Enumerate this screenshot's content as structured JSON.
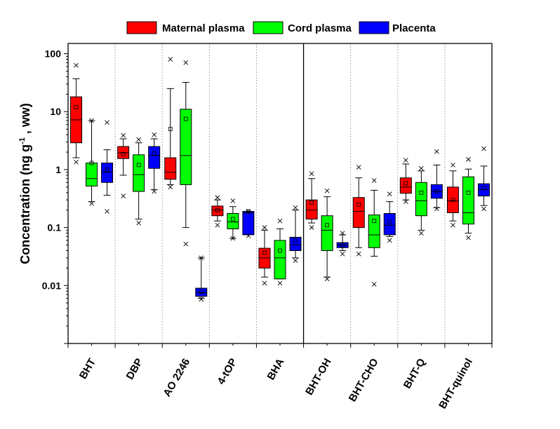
{
  "chart_data": {
    "type": "box",
    "ylabel": "Concentration (ng g",
    "ylabel_sup": "-1",
    "ylabel_tail": " , ww)",
    "yscale": "log",
    "ylim": [
      0.001,
      150
    ],
    "yticks": [
      {
        "value": 0.01,
        "label": "0.01"
      },
      {
        "value": 0.1,
        "label": "0.1"
      },
      {
        "value": 1,
        "label": "1"
      },
      {
        "value": 10,
        "label": "10"
      },
      {
        "value": 100,
        "label": "100"
      }
    ],
    "categories": [
      "BHT",
      "DBP",
      "AO 2246",
      "4-tOP",
      "BHA",
      "BHT-OH",
      "BHT-CHO",
      "BHT-Q",
      "BHT-quinol"
    ],
    "separator_after_category": 4,
    "legend": [
      {
        "name": "Maternal plasma",
        "color": "#ff0000"
      },
      {
        "name": "Cord plasma",
        "color": "#00ff00"
      },
      {
        "name": "Placenta",
        "color": "#0000ff"
      }
    ],
    "series": [
      {
        "name": "Maternal plasma",
        "color": "#ff0000",
        "boxes": [
          {
            "whisker_low": 1.6,
            "q1": 2.9,
            "median": 7.2,
            "q3": 18,
            "whisker_high": 37,
            "mean": 12,
            "outliers": [
              1.35,
              63
            ]
          },
          {
            "whisker_low": 0.8,
            "q1": 1.55,
            "median": 1.95,
            "q3": 2.5,
            "whisker_high": 3.4,
            "mean": 1.85,
            "outliers": [
              0.35,
              3.9
            ]
          },
          {
            "whisker_low": 0.55,
            "q1": 0.68,
            "median": 0.9,
            "q3": 1.6,
            "whisker_high": 25,
            "mean": 5,
            "outliers": [
              0.5,
              80
            ]
          },
          {
            "whisker_low": 0.13,
            "q1": 0.16,
            "median": 0.2,
            "q3": 0.235,
            "whisker_high": 0.3,
            "mean": 0.2,
            "outliers": [
              0.11,
              0.33
            ]
          },
          {
            "whisker_low": 0.014,
            "q1": 0.02,
            "median": 0.03,
            "q3": 0.044,
            "whisker_high": 0.09,
            "mean": 0.037,
            "outliers": [
              0.011,
              0.1
            ]
          },
          {
            "whisker_low": 0.12,
            "q1": 0.14,
            "median": 0.2,
            "q3": 0.3,
            "whisker_high": 0.7,
            "mean": 0.27,
            "outliers": [
              0.1,
              0.85
            ]
          },
          {
            "whisker_low": 0.045,
            "q1": 0.1,
            "median": 0.19,
            "q3": 0.33,
            "whisker_high": 0.72,
            "mean": 0.25,
            "outliers": [
              0.035,
              1.1
            ]
          },
          {
            "whisker_low": 0.3,
            "q1": 0.39,
            "median": 0.5,
            "q3": 0.72,
            "whisker_high": 1.25,
            "mean": 0.58,
            "outliers": [
              0.28,
              1.45
            ]
          },
          {
            "whisker_low": 0.13,
            "q1": 0.18,
            "median": 0.29,
            "q3": 0.5,
            "whisker_high": 0.95,
            "mean": 0.3,
            "outliers": [
              0.11,
              1.2
            ]
          }
        ]
      },
      {
        "name": "Cord plasma",
        "color": "#00ff00",
        "boxes": [
          {
            "whisker_low": 0.28,
            "q1": 0.52,
            "median": 0.7,
            "q3": 1.3,
            "whisker_high": 7,
            "mean": 1.3,
            "outliers": [
              0.26,
              7
            ]
          },
          {
            "whisker_low": 0.14,
            "q1": 0.42,
            "median": 0.82,
            "q3": 1.8,
            "whisker_high": 2.9,
            "mean": 1.2,
            "outliers": [
              0.12,
              3.3
            ]
          },
          {
            "whisker_low": 0.1,
            "q1": 0.55,
            "median": 1.75,
            "q3": 11,
            "whisker_high": 32,
            "mean": 7.5,
            "outliers": [
              0.052,
              70
            ]
          },
          {
            "whisker_low": 0.065,
            "q1": 0.095,
            "median": 0.125,
            "q3": 0.175,
            "whisker_high": 0.23,
            "mean": 0.14,
            "outliers": [
              0.065,
              0.29
            ]
          },
          {
            "whisker_low": 0.013,
            "q1": 0.013,
            "median": 0.03,
            "q3": 0.06,
            "whisker_high": 0.095,
            "mean": 0.04,
            "outliers": [
              0.011,
              0.13
            ]
          },
          {
            "whisker_low": 0.014,
            "q1": 0.04,
            "median": 0.09,
            "q3": 0.16,
            "whisker_high": 0.34,
            "mean": 0.11,
            "outliers": [
              0.013,
              0.43
            ]
          },
          {
            "whisker_low": 0.032,
            "q1": 0.045,
            "median": 0.075,
            "q3": 0.165,
            "whisker_high": 0.44,
            "mean": 0.13,
            "outliers": [
              0.0105,
              0.65
            ]
          },
          {
            "whisker_low": 0.09,
            "q1": 0.16,
            "median": 0.29,
            "q3": 0.6,
            "whisker_high": 0.95,
            "mean": 0.4,
            "outliers": [
              0.08,
              1.05
            ]
          },
          {
            "whisker_low": 0.08,
            "q1": 0.115,
            "median": 0.18,
            "q3": 0.75,
            "whisker_high": 1.02,
            "mean": 0.4,
            "outliers": [
              0.067,
              1.5
            ]
          }
        ]
      },
      {
        "name": "Placenta",
        "color": "#0000ff",
        "boxes": [
          {
            "whisker_low": 0.36,
            "q1": 0.6,
            "median": 0.9,
            "q3": 1.3,
            "whisker_high": 2.2,
            "mean": 1.0,
            "outliers": [
              0.19,
              6.5
            ]
          },
          {
            "whisker_low": 0.45,
            "q1": 1.05,
            "median": 1.75,
            "q3": 2.5,
            "whisker_high": 3.4,
            "mean": 1.9,
            "outliers": [
              0.42,
              4.0
            ]
          },
          {
            "whisker_low": 0.006,
            "q1": 0.0065,
            "median": 0.0075,
            "q3": 0.009,
            "whisker_high": 0.03,
            "mean": 0.0078,
            "outliers": [
              0.0058,
              0.03
            ]
          },
          {
            "whisker_low": 0.075,
            "q1": 0.075,
            "median": 0.18,
            "q3": 0.19,
            "whisker_high": 0.19,
            "mean": 0.19,
            "outliers": [
              0.072,
              0.19
            ]
          },
          {
            "whisker_low": 0.03,
            "q1": 0.04,
            "median": 0.05,
            "q3": 0.068,
            "whisker_high": 0.2,
            "mean": 0.06,
            "outliers": [
              0.027,
              0.22
            ]
          },
          {
            "whisker_low": 0.04,
            "q1": 0.045,
            "median": 0.05,
            "q3": 0.055,
            "whisker_high": 0.075,
            "mean": 0.05,
            "outliers": [
              0.035,
              0.08
            ]
          },
          {
            "whisker_low": 0.07,
            "q1": 0.075,
            "median": 0.11,
            "q3": 0.175,
            "whisker_high": 0.28,
            "mean": 0.125,
            "outliers": [
              0.06,
              0.38
            ]
          },
          {
            "whisker_low": 0.22,
            "q1": 0.32,
            "median": 0.42,
            "q3": 0.55,
            "whisker_high": 1.2,
            "mean": 0.42,
            "outliers": [
              0.21,
              2.05
            ]
          },
          {
            "whisker_low": 0.24,
            "q1": 0.35,
            "median": 0.45,
            "q3": 0.57,
            "whisker_high": 1.15,
            "mean": 0.48,
            "outliers": [
              0.21,
              2.3
            ]
          }
        ]
      }
    ]
  }
}
